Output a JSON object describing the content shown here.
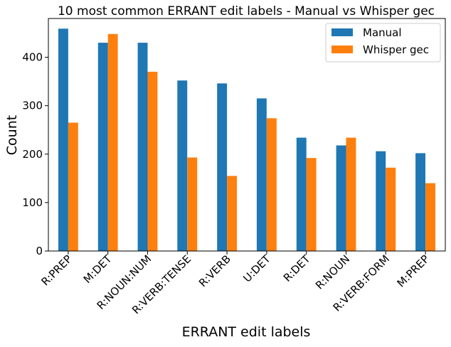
{
  "chart_data": {
    "type": "bar",
    "title": "10 most common ERRANT edit labels - Manual vs Whisper gec",
    "xlabel": "ERRANT edit labels",
    "ylabel": "Count",
    "categories": [
      "R:PREP",
      "M:DET",
      "R:NOUN:NUM",
      "R:VERB:TENSE",
      "R:VERB",
      "U:DET",
      "R:DET",
      "R:NOUN",
      "R:VERB:FORM",
      "M:PREP"
    ],
    "series": [
      {
        "name": "Manual",
        "color": "#1f77b4",
        "values": [
          459,
          430,
          430,
          352,
          346,
          315,
          234,
          218,
          206,
          202
        ]
      },
      {
        "name": "Whisper gec",
        "color": "#ff7f0e",
        "values": [
          265,
          448,
          370,
          193,
          155,
          274,
          192,
          234,
          172,
          140
        ]
      }
    ],
    "ylim": [
      0,
      480
    ],
    "yticks": [
      0,
      100,
      200,
      300,
      400
    ],
    "grid": false,
    "legend_position": "top-right"
  }
}
